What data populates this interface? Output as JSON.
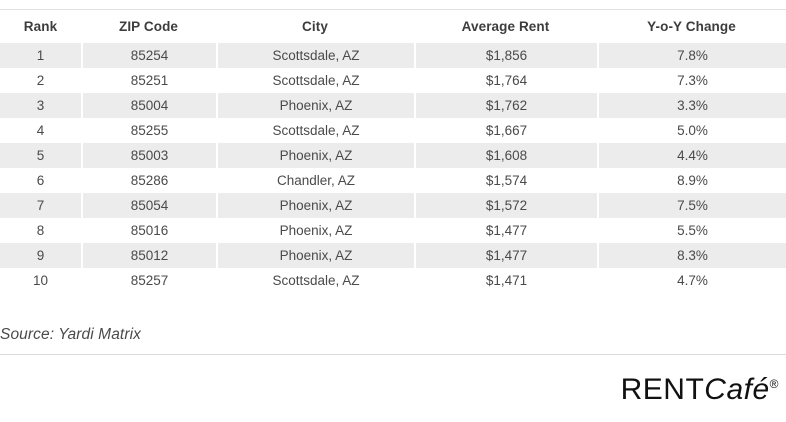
{
  "chart_data": {
    "type": "table",
    "columns": [
      "Rank",
      "ZIP Code",
      "City",
      "Average Rent",
      "Y-o-Y Change"
    ],
    "rows": [
      [
        "1",
        "85254",
        "Scottsdale, AZ",
        "$1,856",
        "7.8%"
      ],
      [
        "2",
        "85251",
        "Scottsdale, AZ",
        "$1,764",
        "7.3%"
      ],
      [
        "3",
        "85004",
        "Phoenix, AZ",
        "$1,762",
        "3.3%"
      ],
      [
        "4",
        "85255",
        "Scottsdale, AZ",
        "$1,667",
        "5.0%"
      ],
      [
        "5",
        "85003",
        "Phoenix, AZ",
        "$1,608",
        "4.4%"
      ],
      [
        "6",
        "85286",
        "Chandler, AZ",
        "$1,574",
        "8.9%"
      ],
      [
        "7",
        "85054",
        "Phoenix, AZ",
        "$1,572",
        "7.5%"
      ],
      [
        "8",
        "85016",
        "Phoenix, AZ",
        "$1,477",
        "5.5%"
      ],
      [
        "9",
        "85012",
        "Phoenix, AZ",
        "$1,477",
        "8.3%"
      ],
      [
        "10",
        "85257",
        "Scottsdale, AZ",
        "$1,471",
        "4.7%"
      ]
    ],
    "layout_hints": {
      "striped_rows": "odd",
      "alignment": "center",
      "grid": "off"
    }
  },
  "footer": {
    "source_note": "Source: Yardi Matrix"
  },
  "logo": {
    "rent": "RENT",
    "cafe": "Café",
    "registered": "®"
  },
  "colors": {
    "stripe": "#ececec",
    "header_text": "#3d3d3d",
    "cell_text": "#4a4a4a",
    "divider": "#d9d9d9",
    "logo_text": "#111111",
    "background": "#ffffff"
  }
}
